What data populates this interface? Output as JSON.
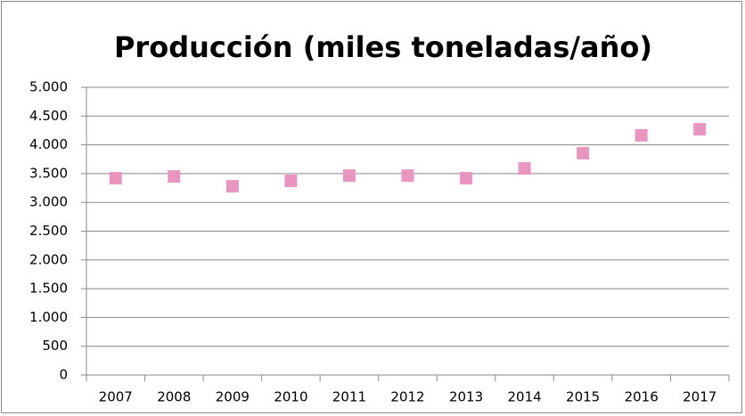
{
  "chart_data": {
    "type": "line",
    "title": "Producción (miles toneladas/año)",
    "categories": [
      "2007",
      "2008",
      "2009",
      "2010",
      "2011",
      "2012",
      "2013",
      "2014",
      "2015",
      "2016",
      "2017"
    ],
    "series": [
      {
        "name": "Producción",
        "color": "#e896c0",
        "values": [
          3420,
          3450,
          3280,
          3375,
          3465,
          3465,
          3420,
          3590,
          3855,
          4165,
          4270
        ]
      }
    ],
    "ylim": [
      0,
      5000
    ],
    "yticks": [
      0,
      500,
      {
        "value": 1000,
        "label": "1.000"
      },
      {
        "value": 1500,
        "label": "1.500"
      },
      {
        "value": 2000,
        "label": "2.000"
      },
      {
        "value": 2500,
        "label": "2.500"
      },
      {
        "value": 3000,
        "label": "3.000"
      },
      {
        "value": 3500,
        "label": "3.500"
      },
      {
        "value": 4000,
        "label": "4.000"
      },
      {
        "value": 4500,
        "label": "4.500"
      },
      {
        "value": 5000,
        "label": "5.000"
      }
    ],
    "grid": true
  }
}
